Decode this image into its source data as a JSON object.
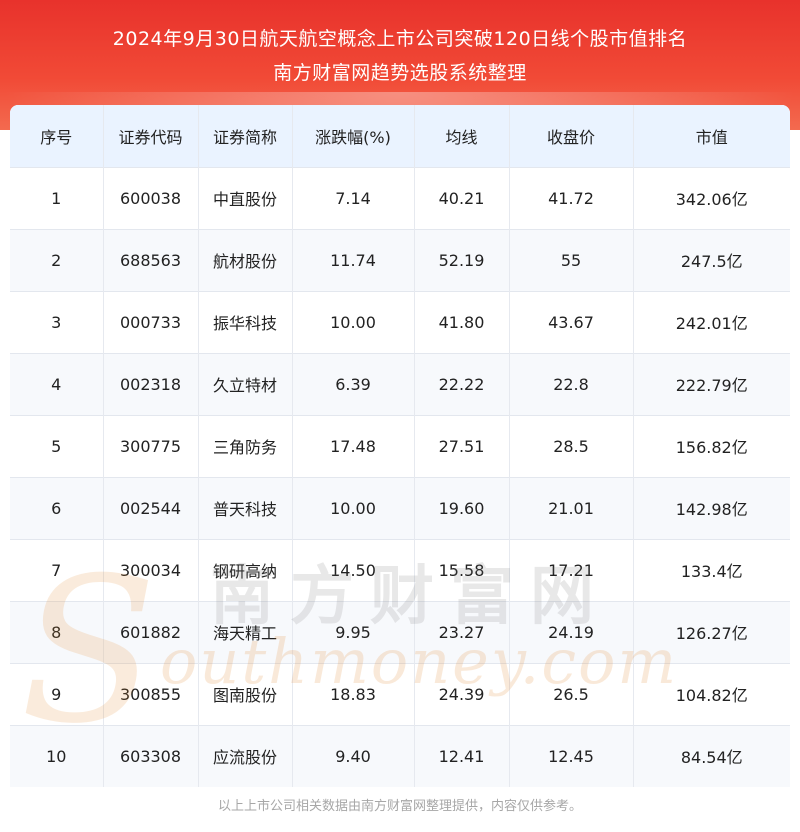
{
  "header": {
    "title_line1": "2024年9月30日航天航空概念上市公司突破120日线个股市值排名",
    "title_line2": "南方财富网趋势选股系统整理"
  },
  "table": {
    "columns": [
      "序号",
      "证券代码",
      "证券简称",
      "涨跌幅(%)",
      "均线",
      "收盘价",
      "市值"
    ],
    "rows": [
      [
        "1",
        "600038",
        "中直股份",
        "7.14",
        "40.21",
        "41.72",
        "342.06亿"
      ],
      [
        "2",
        "688563",
        "航材股份",
        "11.74",
        "52.19",
        "55",
        "247.5亿"
      ],
      [
        "3",
        "000733",
        "振华科技",
        "10.00",
        "41.80",
        "43.67",
        "242.01亿"
      ],
      [
        "4",
        "002318",
        "久立特材",
        "6.39",
        "22.22",
        "22.8",
        "222.79亿"
      ],
      [
        "5",
        "300775",
        "三角防务",
        "17.48",
        "27.51",
        "28.5",
        "156.82亿"
      ],
      [
        "6",
        "002544",
        "普天科技",
        "10.00",
        "19.60",
        "21.01",
        "142.98亿"
      ],
      [
        "7",
        "300034",
        "钢研高纳",
        "14.50",
        "15.58",
        "17.21",
        "133.4亿"
      ],
      [
        "8",
        "601882",
        "海天精工",
        "9.95",
        "23.27",
        "24.19",
        "126.27亿"
      ],
      [
        "9",
        "300855",
        "图南股份",
        "18.83",
        "24.39",
        "26.5",
        "104.82亿"
      ],
      [
        "10",
        "603308",
        "应流股份",
        "9.40",
        "12.41",
        "12.45",
        "84.54亿"
      ]
    ]
  },
  "watermark": {
    "cn": "南方财富网",
    "en": "outhmoney.com",
    "s": "S"
  },
  "footer": {
    "note": "以上上市公司相关数据由南方财富网整理提供，内容仅供参考。"
  },
  "colors": {
    "header_red": "#e8322c",
    "table_header_bg": "#eaf3ff",
    "stripe_bg": "#f7f9fc"
  }
}
